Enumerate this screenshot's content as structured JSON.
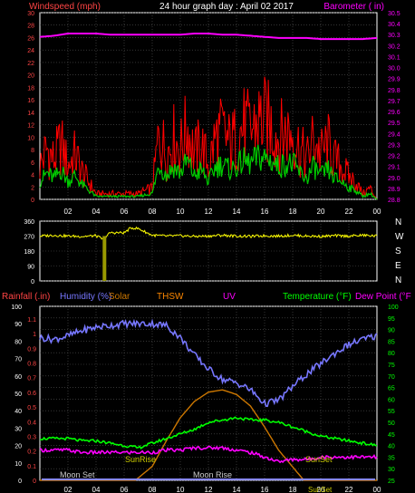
{
  "panels": {
    "top": {
      "title": "24 hour graph day : April 02 2017",
      "left_label": "Windspeed (mph)",
      "right_label": "Barometer ( in)",
      "left_ticks": [
        "0",
        "2",
        "4",
        "6",
        "8",
        "10",
        "12",
        "14",
        "16",
        "18",
        "20",
        "22",
        "24",
        "26",
        "28",
        "30"
      ],
      "right_ticks": [
        "28.8",
        "28.9",
        "29.0",
        "29.1",
        "29.2",
        "29.3",
        "29.4",
        "29.5",
        "29.6",
        "29.7",
        "29.8",
        "29.9",
        "30.0",
        "30.1",
        "30.2",
        "30.3",
        "30.4",
        "30.5"
      ]
    },
    "middle": {
      "left_ticks": [
        "0",
        "90",
        "180",
        "270",
        "360"
      ],
      "compass": [
        "N",
        "W",
        "S",
        "E",
        "N"
      ]
    },
    "bottom": {
      "labels": {
        "rain": "Rainfall (.in)",
        "humidity": "Humidity (%)",
        "solar": "Solar",
        "thsw": "THSW",
        "uv": "UV",
        "temp": "Temperature (°F)",
        "dew": "Dew Point (°F"
      },
      "hum_ticks": [
        "0",
        "10",
        "20",
        "30",
        "40",
        "50",
        "60",
        "70",
        "80",
        "90",
        "100"
      ],
      "rain_ticks": [
        "0",
        "0.1",
        "0.2",
        "0.3",
        "0.4",
        "0.5",
        "0.6",
        "0.7",
        "0.8",
        "0.9",
        "1",
        "1.1"
      ],
      "temp_ticks": [
        "25",
        "30",
        "35",
        "40",
        "45",
        "50",
        "55",
        "60",
        "65",
        "70",
        "75",
        "80",
        "85",
        "90",
        "95",
        "100"
      ],
      "annotations": {
        "sunrise": "SunRise",
        "sunset": "SunSet",
        "moonset": "Moon Set",
        "moonrise": "Moon Rise",
        "sunset_axis": "SunSet"
      }
    },
    "x_ticks": [
      "02",
      "04",
      "06",
      "08",
      "10",
      "12",
      "14",
      "16",
      "18",
      "20",
      "22",
      "00"
    ]
  },
  "colors": {
    "wind": "#ff0000",
    "gust_avg": "#00cc00",
    "baro": "#ff00ff",
    "direction": "#ffff00",
    "humidity": "#7777ff",
    "solar": "#cc7700",
    "temp": "#00ff00",
    "dew": "#ff00ff",
    "left_axis": "#ff4444",
    "right_axis": "#ff00ff",
    "temp_axis": "#00ff00",
    "grid": "#555555",
    "axis": "#ffffff"
  },
  "chart_data": [
    {
      "type": "line",
      "title": "24 hour graph day : April 02 2017",
      "xlabel": "",
      "x_range_hours": [
        0,
        24
      ],
      "series": [
        {
          "name": "Windspeed (mph)",
          "axis": "left",
          "x": [
            0,
            0.5,
            1,
            1.5,
            2,
            2.5,
            3,
            3.5,
            4,
            5,
            6,
            7,
            8,
            8.5,
            9,
            9.5,
            10,
            10.5,
            11,
            11.5,
            12,
            12.5,
            13,
            13.5,
            14,
            14.5,
            15,
            15.5,
            16,
            16.5,
            17,
            17.5,
            18,
            18.5,
            19,
            19.5,
            20,
            20.5,
            21,
            21.5,
            22,
            22.5,
            23,
            23.5,
            24
          ],
          "values": [
            6,
            9,
            7,
            10,
            6,
            8,
            5,
            3,
            1,
            1,
            1,
            1,
            2,
            12,
            8,
            11,
            9,
            13,
            8,
            10,
            6,
            11,
            12,
            10,
            11,
            13,
            12,
            14,
            14,
            13,
            11,
            12,
            12,
            9,
            7,
            11,
            8,
            10,
            7,
            6,
            4,
            3,
            1,
            2,
            0
          ],
          "ylim": [
            0,
            30
          ]
        },
        {
          "name": "Barometer ( in)",
          "axis": "right",
          "x": [
            0,
            1,
            2,
            3,
            4,
            5,
            6,
            7,
            8,
            9,
            10,
            11,
            12,
            13,
            14,
            15,
            16,
            17,
            18,
            19,
            20,
            21,
            22,
            23,
            24
          ],
          "values": [
            30.28,
            30.29,
            30.31,
            30.31,
            30.31,
            30.3,
            30.3,
            30.3,
            30.3,
            30.3,
            30.3,
            30.31,
            30.31,
            30.3,
            30.3,
            30.29,
            30.28,
            30.27,
            30.27,
            30.27,
            30.26,
            30.26,
            30.26,
            30.26,
            30.27
          ],
          "ylim": [
            28.8,
            30.5
          ]
        }
      ]
    },
    {
      "type": "line",
      "x_range_hours": [
        0,
        24
      ],
      "ylim": [
        0,
        360
      ],
      "series": [
        {
          "x": [
            0,
            1,
            2,
            3,
            4,
            4.5,
            5,
            6,
            6.5,
            7,
            8,
            9,
            10,
            11,
            12,
            13,
            14,
            15,
            16,
            17,
            18,
            19,
            20,
            21,
            22,
            23,
            24
          ],
          "values": [
            270,
            275,
            270,
            268,
            272,
            250,
            290,
            290,
            320,
            315,
            275,
            270,
            272,
            268,
            270,
            275,
            270,
            268,
            272,
            270,
            275,
            270,
            268,
            272,
            270,
            275,
            270
          ]
        }
      ]
    },
    {
      "type": "line",
      "x_range_hours": [
        0,
        24
      ],
      "series": [
        {
          "name": "Humidity (%)",
          "axis": "humidity",
          "x": [
            0,
            1,
            2,
            3,
            4,
            5,
            6,
            7,
            8,
            9,
            10,
            11,
            12,
            13,
            14,
            15,
            16,
            17,
            18,
            19,
            20,
            21,
            22,
            23,
            24
          ],
          "values": [
            82,
            81,
            83,
            86,
            88,
            89,
            90,
            90,
            90,
            89,
            82,
            72,
            64,
            58,
            56,
            52,
            44,
            46,
            54,
            61,
            67,
            73,
            78,
            81,
            83
          ],
          "ylim": [
            0,
            100
          ]
        },
        {
          "name": "Solar",
          "axis": "temp",
          "x": [
            0,
            6.8,
            8,
            9,
            10,
            11,
            12,
            13,
            14,
            15,
            16,
            17,
            18.8,
            24
          ],
          "values": [
            25,
            25,
            31,
            42,
            52,
            59,
            63,
            64,
            62,
            57,
            48,
            38,
            25,
            25
          ],
          "ylim": [
            25,
            100
          ]
        },
        {
          "name": "Temperature (°F)",
          "axis": "temp",
          "x": [
            0,
            1,
            2,
            3,
            4,
            5,
            6,
            7,
            8,
            9,
            10,
            11,
            12,
            13,
            14,
            15,
            16,
            17,
            18,
            19,
            20,
            21,
            22,
            23,
            24
          ],
          "values": [
            43,
            43,
            43,
            42,
            42,
            41,
            40,
            39,
            41,
            43,
            45,
            47,
            50,
            51,
            52,
            51,
            51,
            50,
            48,
            46,
            44,
            43,
            42,
            41,
            40
          ],
          "ylim": [
            25,
            100
          ]
        },
        {
          "name": "Dew Point (°F",
          "axis": "temp",
          "x": [
            0,
            1,
            2,
            3,
            4,
            5,
            6,
            7,
            8,
            9,
            10,
            11,
            12,
            13,
            14,
            15,
            16,
            17,
            18,
            19,
            20,
            21,
            22,
            23,
            24
          ],
          "values": [
            38,
            38,
            38,
            37,
            37,
            37,
            37,
            37,
            37,
            38,
            38,
            39,
            39,
            39,
            38,
            37,
            35,
            33,
            34,
            34,
            35,
            35,
            35,
            35,
            35
          ],
          "ylim": [
            25,
            100
          ]
        }
      ]
    }
  ]
}
